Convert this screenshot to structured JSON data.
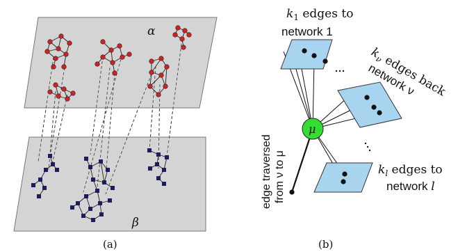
{
  "panel_a": {
    "layer_top_label": "α",
    "layer_bottom_label": "β",
    "caption": "(a)",
    "colors": {
      "plane": "#d4d4d4",
      "node_top": "#d42020",
      "node_bottom": "#1c1c5e"
    }
  },
  "panel_b": {
    "hub_label": "μ",
    "network1_label_line1_k": "k",
    "network1_label_line1_sub": "1",
    "network1_label_line1_rest": " edges to",
    "network1_label_line2": "network 1",
    "networkv_label_k": "k",
    "networkv_label_sub": "ν",
    "networkv_label_line1": " edges back",
    "networkv_label_line2": "network ν",
    "networkl_label_line1_k": "k",
    "networkl_label_line1_sub": "l",
    "networkl_label_line1_rest": " edges to",
    "networkl_label_line2": "network",
    "networkl_label_line2_var": "l",
    "edge_label_line1": "edge traversed",
    "edge_label_line2": "from ν to μ",
    "caption": "(b)",
    "colors": {
      "box": "#a8d4f0",
      "hub": "#33dd33"
    }
  }
}
